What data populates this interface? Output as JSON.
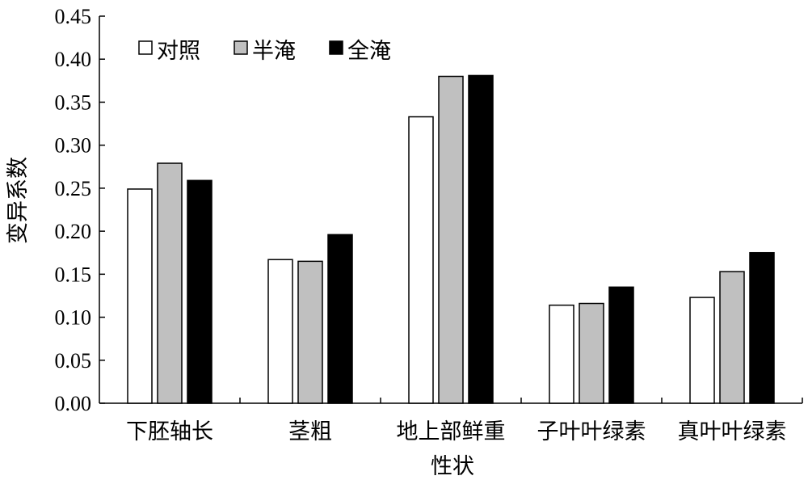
{
  "chart_data": {
    "type": "bar",
    "xlabel": "性状",
    "ylabel": "变异系数",
    "ylim": [
      0,
      0.45
    ],
    "yticks": [
      "0.00",
      "0.05",
      "0.10",
      "0.15",
      "0.20",
      "0.25",
      "0.30",
      "0.35",
      "0.40",
      "0.45"
    ],
    "categories": [
      "下胚轴长",
      "茎粗",
      "地上部鲜重",
      "子叶叶绿素",
      "真叶叶绿素"
    ],
    "series": [
      {
        "name": "对照",
        "color": "#ffffff",
        "values": [
          0.249,
          0.167,
          0.333,
          0.114,
          0.123
        ]
      },
      {
        "name": "半淹",
        "color": "#c0c0c0",
        "values": [
          0.279,
          0.165,
          0.38,
          0.116,
          0.153
        ]
      },
      {
        "name": "全淹",
        "color": "#000000",
        "values": [
          0.259,
          0.196,
          0.381,
          0.135,
          0.175
        ]
      }
    ],
    "legend_position": "top-left",
    "grid": false
  }
}
